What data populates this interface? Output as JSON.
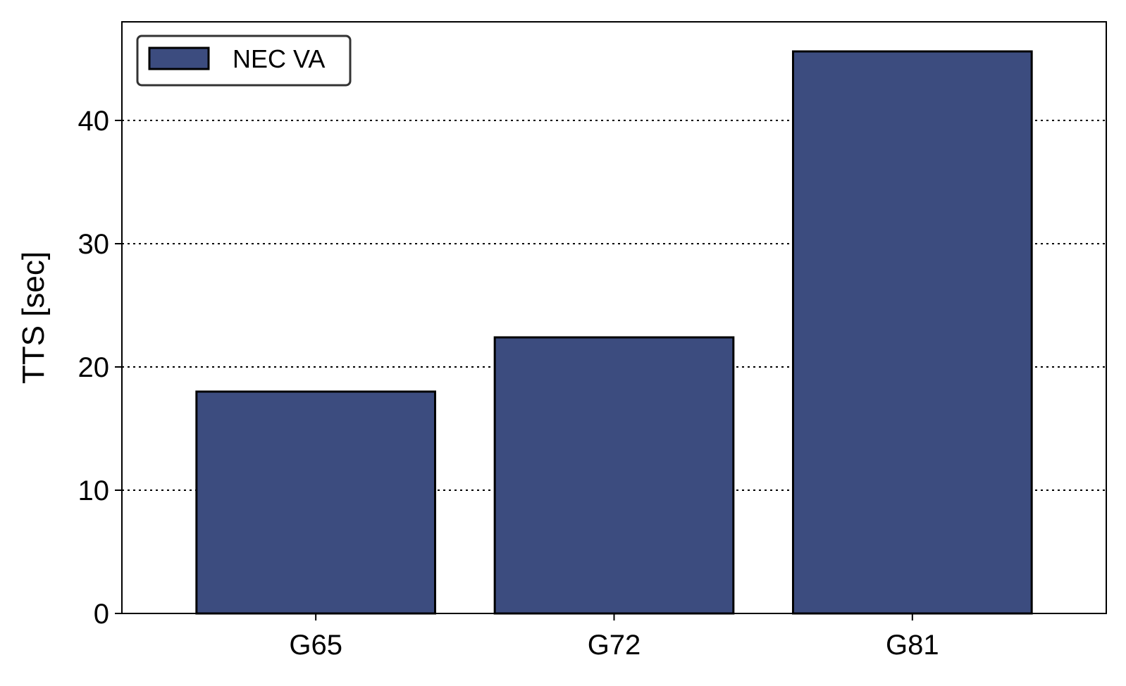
{
  "chart_data": {
    "type": "bar",
    "title": "",
    "xlabel": "",
    "ylabel": "TTS [sec]",
    "categories": [
      "G65",
      "G72",
      "G81"
    ],
    "series": [
      {
        "name": "NEC VA",
        "values": [
          18.0,
          22.4,
          45.6
        ],
        "color": "#3c4c7f"
      }
    ],
    "ylim": [
      0,
      48
    ],
    "yticks": [
      0,
      10,
      20,
      30,
      40
    ],
    "ytick_labels": [
      "0",
      "10",
      "20",
      "30",
      "40"
    ],
    "grid": "horizontal-dotted",
    "legend": {
      "placement": "top-left",
      "label": "NEC VA"
    }
  }
}
